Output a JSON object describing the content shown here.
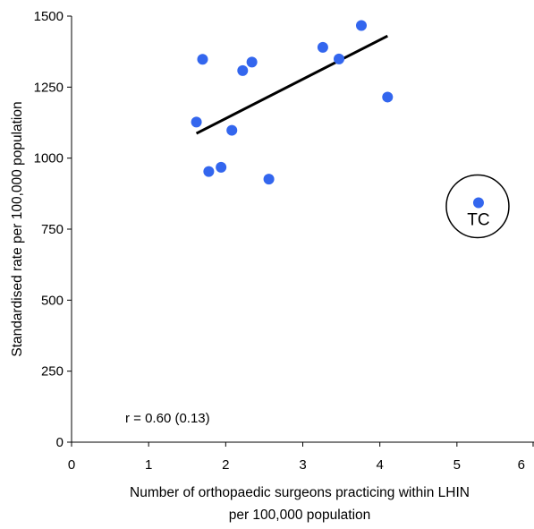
{
  "chart_data": {
    "type": "scatter",
    "title": "",
    "xlabel_lines": [
      "Number of  orthopaedic surgeons practicing within LHIN",
      "per 100,000 population"
    ],
    "ylabel": "Standardised rate per 100,000 population",
    "xlim": [
      0,
      6
    ],
    "ylim": [
      0,
      1500
    ],
    "xticks": [
      "0",
      "1",
      "2",
      "3",
      "4",
      "5",
      "6"
    ],
    "yticks": [
      "0",
      "250",
      "500",
      "750",
      "1000",
      "1250",
      "1500"
    ],
    "grid": false,
    "legend": "none",
    "point_color": "#3366ee",
    "series": [
      {
        "points": [
          {
            "x": 1.62,
            "y": 1127
          },
          {
            "x": 1.7,
            "y": 1348
          },
          {
            "x": 1.78,
            "y": 953
          },
          {
            "x": 1.94,
            "y": 968
          },
          {
            "x": 2.08,
            "y": 1098
          },
          {
            "x": 2.22,
            "y": 1308
          },
          {
            "x": 2.34,
            "y": 1338
          },
          {
            "x": 2.56,
            "y": 926
          },
          {
            "x": 3.26,
            "y": 1390
          },
          {
            "x": 3.47,
            "y": 1349
          },
          {
            "x": 3.76,
            "y": 1467
          },
          {
            "x": 4.1,
            "y": 1215
          },
          {
            "x": 5.28,
            "y": 843
          }
        ]
      }
    ],
    "trendline": {
      "x": [
        1.62,
        4.1
      ],
      "y": [
        1087,
        1430
      ],
      "color": "#000000"
    },
    "annotations": {
      "correlation": "r = 0.60 (0.13)",
      "outlier_label": "TC",
      "outlier_point": {
        "x": 5.28,
        "y": 843
      }
    }
  }
}
